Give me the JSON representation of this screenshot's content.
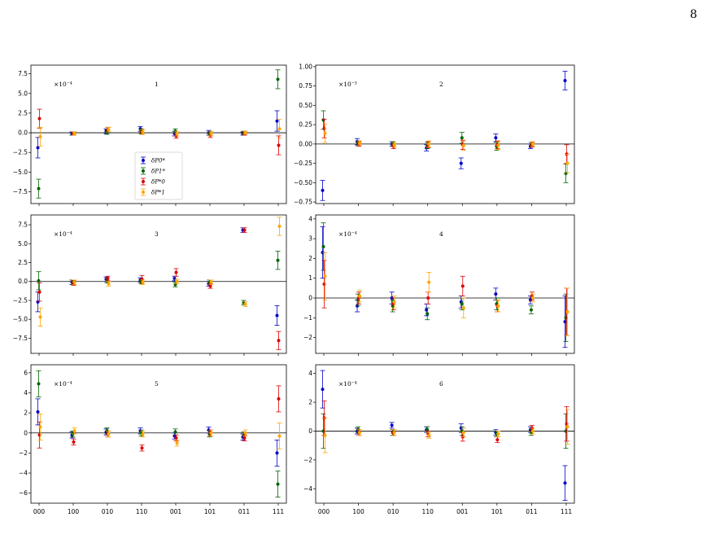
{
  "page": {
    "number": "8"
  },
  "chart_data": [
    {
      "type": "scatter",
      "panel_label": "1",
      "multiplier": "×10⁻⁴",
      "categories": [
        "000",
        "100",
        "010",
        "110",
        "001",
        "101",
        "011",
        "111"
      ],
      "ylim": [
        -9.0,
        8.6
      ],
      "yticks": [
        7.5,
        5.0,
        2.5,
        0.0,
        -2.5,
        -5.0,
        -7.5
      ],
      "ytick_labels": [
        "7.5",
        "5.0",
        "2.5",
        "0.0",
        "−2.5",
        "−5.0",
        "−7.5"
      ],
      "legend": {
        "placement": "lower-center"
      },
      "series": [
        {
          "name": "δP0*",
          "color": "#0000cc",
          "values": [
            -1.9,
            -0.1,
            0.2,
            0.5,
            -0.1,
            0.0,
            -0.1,
            1.5
          ],
          "errors": [
            1.3,
            0.2,
            0.3,
            0.3,
            0.3,
            0.3,
            0.2,
            1.3
          ]
        },
        {
          "name": "δP1*",
          "color": "#006400",
          "values": [
            -7.1,
            -0.1,
            0.1,
            0.2,
            0.2,
            -0.1,
            0.0,
            6.8
          ],
          "errors": [
            1.2,
            0.2,
            0.3,
            0.3,
            0.3,
            0.2,
            0.2,
            1.2
          ]
        },
        {
          "name": "δP*0",
          "color": "#dd0000",
          "values": [
            1.8,
            -0.1,
            0.4,
            0.1,
            -0.4,
            -0.3,
            -0.1,
            -1.6
          ],
          "errors": [
            1.2,
            0.2,
            0.3,
            0.3,
            0.3,
            0.3,
            0.2,
            1.2
          ]
        },
        {
          "name": "δP*1",
          "color": "#ffa500",
          "values": [
            -0.5,
            -0.1,
            0.4,
            0.1,
            -0.1,
            -0.1,
            0.0,
            0.5
          ],
          "errors": [
            1.2,
            0.2,
            0.3,
            0.3,
            0.3,
            0.3,
            0.2,
            1.2
          ]
        }
      ]
    },
    {
      "type": "scatter",
      "panel_label": "2",
      "multiplier": "×10⁻³",
      "categories": [
        "000",
        "100",
        "010",
        "110",
        "001",
        "101",
        "011",
        "111"
      ],
      "ylim": [
        -0.77,
        1.02
      ],
      "yticks": [
        1.0,
        0.75,
        0.5,
        0.25,
        0.0,
        -0.25,
        -0.5,
        -0.75
      ],
      "ytick_labels": [
        "1.00",
        "0.75",
        "0.50",
        "0.25",
        "0.00",
        "−0.25",
        "−0.50",
        "−0.75"
      ],
      "series": [
        {
          "name": "δP0*",
          "color": "#0000cc",
          "values": [
            -0.6,
            0.03,
            0.0,
            -0.05,
            -0.25,
            0.08,
            -0.03,
            0.82
          ],
          "errors": [
            0.13,
            0.04,
            0.03,
            0.04,
            0.07,
            0.05,
            0.03,
            0.12
          ]
        },
        {
          "name": "δP1*",
          "color": "#006400",
          "values": [
            0.31,
            0.01,
            0.0,
            -0.02,
            0.08,
            -0.03,
            -0.01,
            -0.38
          ],
          "errors": [
            0.12,
            0.03,
            0.03,
            0.04,
            0.07,
            0.05,
            0.03,
            0.12
          ]
        },
        {
          "name": "δP*0",
          "color": "#dd0000",
          "values": [
            0.2,
            0.0,
            -0.03,
            -0.01,
            -0.01,
            -0.01,
            -0.01,
            -0.13
          ],
          "errors": [
            0.12,
            0.03,
            0.03,
            0.04,
            0.06,
            0.05,
            0.03,
            0.12
          ]
        },
        {
          "name": "δP*1",
          "color": "#ffa500",
          "values": [
            0.14,
            0.01,
            -0.01,
            0.0,
            -0.02,
            -0.02,
            0.0,
            -0.25
          ],
          "errors": [
            0.12,
            0.03,
            0.03,
            0.04,
            0.06,
            0.05,
            0.03,
            0.12
          ]
        }
      ]
    },
    {
      "type": "scatter",
      "panel_label": "3",
      "multiplier": "×10⁻⁴",
      "categories": [
        "000",
        "100",
        "010",
        "110",
        "001",
        "101",
        "011",
        "111"
      ],
      "ylim": [
        -9.5,
        8.8
      ],
      "yticks": [
        7.5,
        5.0,
        2.5,
        0.0,
        -2.5,
        -5.0,
        -7.5
      ],
      "ytick_labels": [
        "7.5",
        "5.0",
        "2.5",
        "0.0",
        "−2.5",
        "−5.0",
        "−7.5"
      ],
      "series": [
        {
          "name": "δP0*",
          "color": "#0000cc",
          "values": [
            -2.7,
            -0.1,
            0.3,
            0.2,
            0.4,
            -0.3,
            6.8,
            -4.5
          ],
          "errors": [
            1.3,
            0.3,
            0.3,
            0.3,
            0.3,
            0.3,
            0.3,
            1.3
          ]
        },
        {
          "name": "δP1*",
          "color": "#006400",
          "values": [
            0.1,
            -0.1,
            0.1,
            0.0,
            -0.4,
            -0.1,
            -2.8,
            2.8
          ],
          "errors": [
            1.2,
            0.3,
            0.3,
            0.3,
            0.3,
            0.3,
            0.3,
            1.2
          ]
        },
        {
          "name": "δP*0",
          "color": "#dd0000",
          "values": [
            -1.4,
            -0.2,
            0.4,
            0.3,
            1.2,
            -0.6,
            6.8,
            -7.8
          ],
          "errors": [
            1.2,
            0.3,
            0.3,
            0.5,
            0.5,
            0.3,
            0.3,
            1.2
          ]
        },
        {
          "name": "δP*1",
          "color": "#ffa500",
          "values": [
            -4.7,
            -0.1,
            -0.3,
            -0.1,
            0.0,
            -0.1,
            -3.0,
            7.3
          ],
          "errors": [
            1.2,
            0.3,
            0.3,
            0.3,
            0.3,
            0.3,
            0.3,
            1.2
          ]
        }
      ]
    },
    {
      "type": "scatter",
      "panel_label": "4",
      "multiplier": "×10⁻⁴",
      "categories": [
        "000",
        "100",
        "010",
        "110",
        "001",
        "101",
        "011",
        "111"
      ],
      "ylim": [
        -2.8,
        4.2
      ],
      "yticks": [
        4,
        3,
        2,
        1,
        0,
        -1,
        -2
      ],
      "ytick_labels": [
        "4",
        "3",
        "2",
        "1",
        "0",
        "−1",
        "−2"
      ],
      "series": [
        {
          "name": "δP0*",
          "color": "#0000cc",
          "values": [
            2.3,
            -0.4,
            0.0,
            -0.6,
            -0.2,
            0.2,
            -0.1,
            -1.2
          ],
          "errors": [
            1.3,
            0.3,
            0.3,
            0.3,
            0.3,
            0.3,
            0.2,
            1.3
          ]
        },
        {
          "name": "δP1*",
          "color": "#006400",
          "values": [
            2.6,
            -0.1,
            -0.4,
            -0.8,
            -0.3,
            -0.3,
            -0.6,
            -1.0
          ],
          "errors": [
            1.2,
            0.3,
            0.3,
            0.3,
            0.3,
            0.3,
            0.2,
            1.2
          ]
        },
        {
          "name": "δP*0",
          "color": "#dd0000",
          "values": [
            0.7,
            0.0,
            -0.3,
            0.0,
            0.6,
            -0.4,
            0.1,
            -0.7
          ],
          "errors": [
            1.2,
            0.3,
            0.3,
            0.3,
            0.5,
            0.3,
            0.2,
            1.2
          ]
        },
        {
          "name": "δP*1",
          "color": "#ffa500",
          "values": [
            1.1,
            0.1,
            -0.2,
            0.8,
            -0.5,
            -0.4,
            0.0,
            -0.7
          ],
          "errors": [
            1.2,
            0.3,
            0.3,
            0.5,
            0.5,
            0.3,
            0.2,
            1.2
          ]
        }
      ]
    },
    {
      "type": "scatter",
      "panel_label": "5",
      "multiplier": "×10⁻⁴",
      "categories": [
        "000",
        "100",
        "010",
        "110",
        "001",
        "101",
        "011",
        "111"
      ],
      "ylim": [
        -7.0,
        6.8
      ],
      "yticks": [
        6,
        4,
        2,
        0,
        -2,
        -4,
        -6
      ],
      "ytick_labels": [
        "6",
        "4",
        "2",
        "0",
        "−2",
        "−4",
        "−6"
      ],
      "series": [
        {
          "name": "δP0*",
          "color": "#0000cc",
          "values": [
            2.1,
            -0.2,
            0.1,
            0.2,
            -0.3,
            0.3,
            -0.4,
            -2.0
          ],
          "errors": [
            1.3,
            0.3,
            0.3,
            0.3,
            0.3,
            0.3,
            0.3,
            1.3
          ]
        },
        {
          "name": "δP1*",
          "color": "#006400",
          "values": [
            4.9,
            -0.1,
            0.2,
            0.0,
            0.1,
            -0.1,
            -0.2,
            -5.1
          ],
          "errors": [
            1.3,
            0.3,
            0.3,
            0.3,
            0.3,
            0.3,
            0.3,
            1.3
          ]
        },
        {
          "name": "δP*0",
          "color": "#dd0000",
          "values": [
            -0.2,
            -0.9,
            -0.1,
            -1.5,
            -0.5,
            0.0,
            -0.5,
            3.4
          ],
          "errors": [
            1.3,
            0.3,
            0.3,
            0.3,
            0.3,
            0.3,
            0.3,
            1.3
          ]
        },
        {
          "name": "δP*1",
          "color": "#ffa500",
          "values": [
            0.6,
            0.2,
            -0.1,
            -0.1,
            -1.0,
            0.0,
            0.0,
            -0.3
          ],
          "errors": [
            1.3,
            0.3,
            0.3,
            0.3,
            0.3,
            0.3,
            0.3,
            1.3
          ]
        }
      ]
    },
    {
      "type": "scatter",
      "panel_label": "6",
      "multiplier": "×10⁻⁴",
      "categories": [
        "000",
        "100",
        "010",
        "110",
        "001",
        "101",
        "011",
        "111"
      ],
      "ylim": [
        -5.0,
        4.6
      ],
      "yticks": [
        4,
        2,
        0,
        -2,
        -4
      ],
      "ytick_labels": [
        "4",
        "2",
        "0",
        "−2",
        "−4"
      ],
      "series": [
        {
          "name": "δP0*",
          "color": "#0000cc",
          "values": [
            2.9,
            0.0,
            0.4,
            0.1,
            0.2,
            -0.1,
            0.1,
            -3.6
          ],
          "errors": [
            1.3,
            0.2,
            0.2,
            0.2,
            0.3,
            0.2,
            0.2,
            1.2
          ]
        },
        {
          "name": "δP1*",
          "color": "#006400",
          "values": [
            0.0,
            0.1,
            -0.1,
            0.1,
            0.0,
            -0.2,
            -0.1,
            0.0
          ],
          "errors": [
            1.2,
            0.2,
            0.2,
            0.2,
            0.3,
            0.2,
            0.2,
            1.2
          ]
        },
        {
          "name": "δP*0",
          "color": "#dd0000",
          "values": [
            0.9,
            -0.1,
            -0.1,
            -0.2,
            -0.4,
            -0.6,
            0.2,
            0.5
          ],
          "errors": [
            1.2,
            0.2,
            0.2,
            0.2,
            0.3,
            0.2,
            0.2,
            1.2
          ]
        },
        {
          "name": "δP*1",
          "color": "#ffa500",
          "values": [
            -0.3,
            -0.1,
            -0.1,
            -0.3,
            -0.1,
            -0.2,
            0.0,
            0.3
          ],
          "errors": [
            1.2,
            0.2,
            0.2,
            0.2,
            0.3,
            0.2,
            0.2,
            1.2
          ]
        }
      ]
    }
  ]
}
